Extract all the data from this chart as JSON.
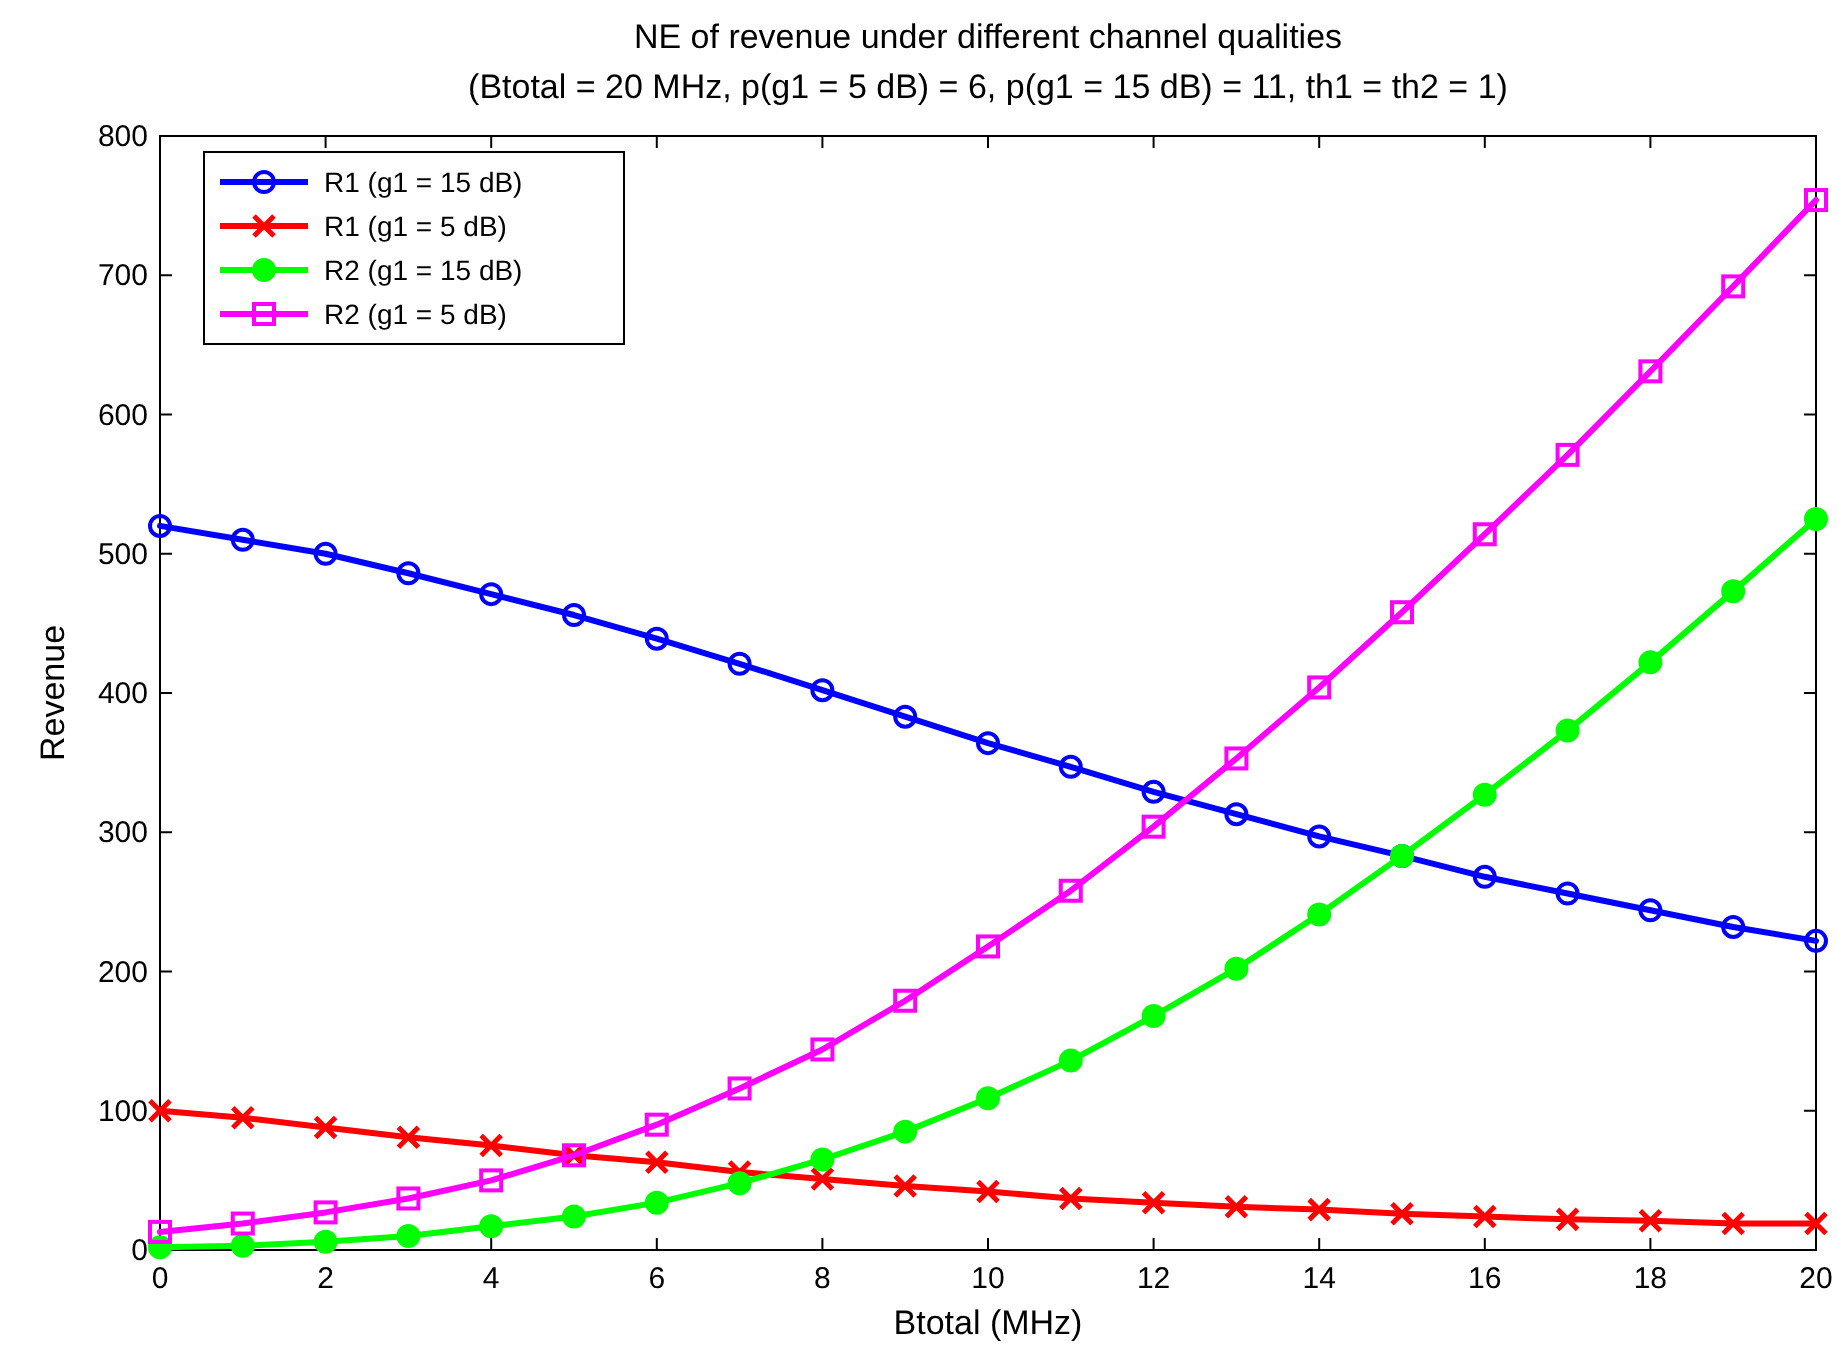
{
  "chart_data": {
    "type": "line",
    "title": "NE of revenue under different channel qualities",
    "subtitle": "(Btotal = 20 MHz, p(g1 = 5 dB) = 6, p(g1 = 15 dB) = 11, th1 = th2 = 1)",
    "xlabel": "Btotal (MHz)",
    "ylabel": "Revenue",
    "x": [
      0,
      1,
      2,
      3,
      4,
      5,
      6,
      7,
      8,
      9,
      10,
      11,
      12,
      13,
      14,
      15,
      16,
      17,
      18,
      19,
      20
    ],
    "xlim": [
      0,
      20
    ],
    "xticks": [
      0,
      2,
      4,
      6,
      8,
      10,
      12,
      14,
      16,
      18,
      20
    ],
    "ylim": [
      0,
      800
    ],
    "yticks": [
      0,
      100,
      200,
      300,
      400,
      500,
      600,
      700,
      800
    ],
    "grid": false,
    "legend": "top left",
    "line_style": "solid",
    "series": [
      {
        "name": "R1 (g1 = 15 dB)",
        "color": "#0000ff",
        "marker": "circle",
        "values": [
          520,
          510,
          500,
          486,
          471,
          456,
          439,
          421,
          402,
          383,
          364,
          347,
          329,
          313,
          297,
          283,
          268,
          256,
          244,
          232,
          222
        ]
      },
      {
        "name": "R1 (g1 = 5 dB)",
        "color": "#ff0000",
        "marker": "cross",
        "values": [
          100,
          95,
          88,
          81,
          75,
          68,
          63,
          56,
          51,
          46,
          42,
          37,
          34,
          31,
          29,
          26,
          24,
          22,
          21,
          19,
          19
        ]
      },
      {
        "name": "R2 (g1 = 15 dB)",
        "color": "#00ff00",
        "marker": "filled-circle",
        "values": [
          2,
          3,
          6,
          10,
          17,
          24,
          34,
          48,
          65,
          85,
          109,
          136,
          168,
          202,
          241,
          283,
          327,
          373,
          422,
          473,
          525
        ]
      },
      {
        "name": "R2 (g1 = 5 dB)",
        "color": "#ff00ff",
        "marker": "square",
        "values": [
          13,
          19,
          27,
          37,
          50,
          68,
          90,
          116,
          144,
          179,
          218,
          258,
          304,
          353,
          404,
          458,
          514,
          571,
          631,
          692,
          754
        ]
      }
    ]
  }
}
